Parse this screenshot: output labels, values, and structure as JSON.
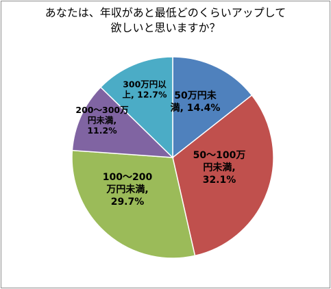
{
  "chart_data": {
    "type": "pie",
    "title_lines": [
      "あなたは、年収があと最低どのくらいアップして",
      "欲しいと思いますか？"
    ],
    "slices": [
      {
        "label_lines": [
          "50万円未",
          "満, 14.4%"
        ],
        "value": 14.4,
        "color": "#4f81bd"
      },
      {
        "label_lines": [
          "50～100万",
          "円未満,",
          "32.1%"
        ],
        "value": 32.1,
        "color": "#c0504d"
      },
      {
        "label_lines": [
          "100～200",
          "万円未満,",
          "29.7%"
        ],
        "value": 29.7,
        "color": "#9bbb59"
      },
      {
        "label_lines": [
          "200～300万",
          "円未満,",
          "11.2%"
        ],
        "value": 11.2,
        "color": "#8064a2"
      },
      {
        "label_lines": [
          "300万円以",
          "上, 12.7%"
        ],
        "value": 12.7,
        "color": "#4bacc6"
      }
    ]
  }
}
